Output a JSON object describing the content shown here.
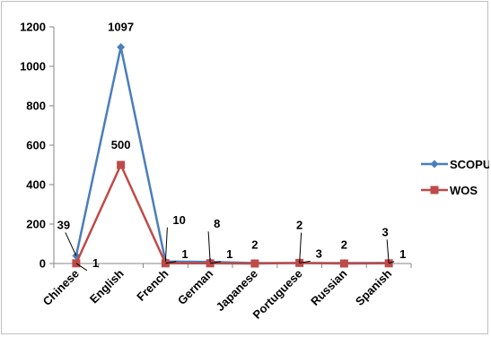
{
  "chart_data": {
    "type": "line",
    "title": "",
    "xlabel": "",
    "ylabel": "",
    "categories": [
      "Chinese",
      "English",
      "French",
      "German",
      "Japanese",
      "Portuguese",
      "Russian",
      "Spanish"
    ],
    "ylim": [
      0,
      1200
    ],
    "yticks": [
      0,
      200,
      400,
      600,
      800,
      1000,
      1200
    ],
    "grid": false,
    "legend_position": "right",
    "series": [
      {
        "name": "SCOPUS",
        "color": "#4a7ebb",
        "marker": "diamond",
        "values": [
          39,
          1097,
          10,
          8,
          2,
          2,
          2,
          3
        ],
        "labels": [
          "39",
          "1097",
          "10",
          "8",
          "2",
          "2",
          "2",
          "3"
        ]
      },
      {
        "name": "WOS",
        "color": "#be4b48",
        "marker": "square",
        "values": [
          1,
          500,
          1,
          1,
          0,
          3,
          0,
          1
        ],
        "labels": [
          "1",
          "500",
          "1",
          "1",
          "",
          "3",
          "",
          "1"
        ]
      }
    ]
  }
}
